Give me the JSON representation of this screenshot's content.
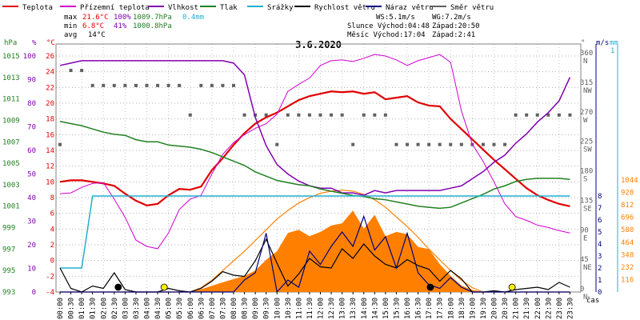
{
  "legend": {
    "items": [
      {
        "label": "Teplota",
        "color": "#e00000"
      },
      {
        "label": "Přízemní teplota",
        "color": "#d000d0"
      },
      {
        "label": "Vlhkost",
        "color": "#8000b0"
      },
      {
        "label": "Tlak",
        "color": "#208020"
      },
      {
        "label": "Srážky",
        "color": "#20b0d0"
      },
      {
        "label": "Rychlost větru",
        "color": "#000000"
      },
      {
        "label": "Náraz větru",
        "color": "#000080"
      },
      {
        "label": "Směr větru",
        "color": "#606060"
      }
    ]
  },
  "stats": {
    "max_label": "max",
    "max_temp": "21.6°C",
    "max_hum": "100%",
    "max_press": "1009.7hPa",
    "rain": "0.4mm",
    "min_label": "min",
    "min_temp": "6.8°C",
    "min_hum": "41%",
    "min_press": "1000.8hPa",
    "avg_label": "avg",
    "avg_temp": "14°C"
  },
  "wind_info": {
    "ws": "WS:5.1m/s",
    "wg": "WG:7.2m/s",
    "sun": "Slunce Východ:04:48",
    "sun_set": "Západ:20:50",
    "moon": "Měsíc Východ:17:04",
    "moon_set": "Západ:2:41"
  },
  "chart_data": {
    "type": "line",
    "title": "3.6.2020",
    "x": [
      "00:00",
      "00:30",
      "01:00",
      "01:30",
      "02:00",
      "02:30",
      "03:00",
      "03:30",
      "04:00",
      "04:30",
      "05:00",
      "05:30",
      "06:00",
      "06:30",
      "07:00",
      "07:30",
      "08:00",
      "08:30",
      "09:00",
      "09:30",
      "10:00",
      "10:30",
      "11:00",
      "11:30",
      "12:00",
      "12:30",
      "13:00",
      "13:30",
      "14:00",
      "14:30",
      "15:00",
      "15:30",
      "16:00",
      "16:30",
      "17:00",
      "17:30",
      "18:00",
      "18:30",
      "19:00",
      "19:30",
      "20:00",
      "20:30",
      "21:00",
      "21:30",
      "22:00",
      "22:30",
      "23:00",
      "23:30"
    ],
    "xlabel": "čas",
    "axes": {
      "hpa": {
        "label": "hPa",
        "ticks": [
          993,
          995,
          997,
          999,
          1001,
          1003,
          1005,
          1007,
          1009,
          1011,
          1013,
          1015
        ]
      },
      "pct": {
        "label": "%",
        "ticks": [
          0,
          10,
          20,
          30,
          40,
          50,
          60,
          70,
          80,
          90,
          100
        ]
      },
      "temp": {
        "label": "°C",
        "ticks": [
          -4,
          -2,
          0,
          2,
          4,
          6,
          8,
          10,
          12,
          14,
          16,
          18,
          20,
          22,
          24,
          26
        ]
      },
      "deg": {
        "label": "°",
        "ticks": [
          {
            "v": 0,
            "t": "0"
          },
          {
            "v": 45,
            "t": "45"
          },
          {
            "v": 90,
            "t": "90"
          },
          {
            "v": 135,
            "t": "135"
          },
          {
            "v": 180,
            "t": "180"
          },
          {
            "v": 225,
            "t": "225"
          },
          {
            "v": 270,
            "t": "270"
          },
          {
            "v": 315,
            "t": "315"
          },
          {
            "v": 360,
            "t": "360"
          }
        ],
        "dirs": [
          {
            "v": 0,
            "t": "N"
          },
          {
            "v": 45,
            "t": "NE"
          },
          {
            "v": 90,
            "t": "E"
          },
          {
            "v": 135,
            "t": "SE"
          },
          {
            "v": 180,
            "t": "S"
          },
          {
            "v": 225,
            "t": "SW"
          },
          {
            "v": 270,
            "t": "W"
          },
          {
            "v": 315,
            "t": "NW"
          },
          {
            "v": 360,
            "t": "N"
          }
        ]
      },
      "ms": {
        "label": "m/s",
        "ticks": [
          0,
          1,
          2,
          3,
          4,
          5,
          6,
          7,
          8
        ]
      },
      "mm": {
        "label": "mm",
        "top_label": "1"
      },
      "wm2": {
        "ticks": [
          116,
          232,
          348,
          464,
          580,
          696,
          812,
          928,
          1044
        ]
      }
    },
    "series": [
      {
        "name": "Teplota",
        "axis": "temp",
        "color": "#e00000",
        "values": [
          10,
          10.2,
          10.2,
          10,
          9.8,
          9.5,
          8.5,
          7.6,
          7,
          7.2,
          8.3,
          9.1,
          9,
          9.4,
          11.5,
          13,
          14.7,
          16.2,
          17.4,
          18.2,
          18.8,
          19.6,
          20.4,
          20.9,
          21.2,
          21.5,
          21.4,
          21.5,
          21.2,
          21.4,
          20.5,
          20.7,
          20.9,
          20.1,
          19.7,
          19.6,
          18,
          16.7,
          15.4,
          14.1,
          12.8,
          11.6,
          10.4,
          9.2,
          8.3,
          7.7,
          7.2,
          6.9
        ]
      },
      {
        "name": "Přízemní teplota",
        "axis": "temp",
        "color": "#d000d0",
        "values": [
          8.5,
          8.6,
          9.3,
          9.8,
          9.9,
          7.8,
          5.5,
          2.6,
          1.8,
          1.5,
          3.5,
          6.5,
          7.8,
          8.3,
          11,
          13.5,
          15,
          16,
          16.8,
          17.4,
          18.6,
          21.5,
          22.4,
          23.2,
          24.8,
          25.4,
          25.5,
          25.3,
          25.7,
          26.2,
          26,
          25.5,
          24.8,
          25.4,
          25.8,
          26.2,
          25.2,
          19,
          14.8,
          12.6,
          10,
          7.2,
          5.6,
          5.1,
          4.5,
          4.2,
          3.8,
          3.5
        ]
      },
      {
        "name": "Vlhkost",
        "axis": "pct",
        "color": "#8000b0",
        "values": [
          96,
          97,
          98,
          98,
          98,
          98,
          98,
          98,
          98,
          98,
          98,
          98,
          98,
          98,
          98,
          98,
          97,
          92,
          74,
          62,
          54,
          50,
          47,
          45,
          44,
          44,
          42,
          42,
          41,
          43,
          42,
          43,
          43,
          43,
          43,
          43,
          44,
          45,
          48,
          51,
          55,
          58,
          63,
          67,
          72,
          76,
          81,
          91
        ]
      },
      {
        "name": "Tlak",
        "axis": "hpa",
        "color": "#208020",
        "values": [
          1008.9,
          1008.7,
          1008.5,
          1008.2,
          1007.9,
          1007.7,
          1007.6,
          1007.2,
          1007,
          1007,
          1006.7,
          1006.6,
          1006.5,
          1006.3,
          1006,
          1005.6,
          1005.2,
          1004.8,
          1004.2,
          1003.8,
          1003.4,
          1003.2,
          1003,
          1002.9,
          1002.6,
          1002.4,
          1002.2,
          1002,
          1001.9,
          1001.7,
          1001.6,
          1001.4,
          1001.2,
          1001,
          1000.9,
          1000.8,
          1000.9,
          1001.3,
          1001.7,
          1002.1,
          1002.6,
          1002.9,
          1003.3,
          1003.5,
          1003.6,
          1003.6,
          1003.6,
          1003.5
        ]
      },
      {
        "name": "Srážky",
        "axis": "mm",
        "color": "#20b0d0",
        "values": [
          0.1,
          0.1,
          0.1,
          0.4,
          0.4,
          0.4,
          0.4,
          0.4,
          0.4,
          0.4,
          0.4,
          0.4,
          0.4,
          0.4,
          0.4,
          0.4,
          0.4,
          0.4,
          0.4,
          0.4,
          0.4,
          0.4,
          0.4,
          0.4,
          0.4,
          0.4,
          0.4,
          0.4,
          0.4,
          0.4,
          0.4,
          0.4,
          0.4,
          0.4,
          0.4,
          0.4,
          0.4,
          0.4,
          0.4,
          0.4,
          0.4,
          0.4,
          0.4,
          0.4,
          0.4,
          0.4,
          0.4,
          0.4
        ]
      },
      {
        "name": "Rychlost větru",
        "axis": "ms",
        "color": "#000000",
        "values": [
          2,
          0.3,
          0,
          0.5,
          0.3,
          1.6,
          0.2,
          0,
          0,
          0,
          0.3,
          0.1,
          0,
          0.3,
          0.9,
          1.7,
          1.4,
          1.3,
          2.6,
          4.4,
          2.4,
          0.5,
          1.5,
          2.8,
          2.1,
          2,
          3.6,
          2.8,
          4,
          3,
          2.3,
          2,
          2.7,
          2.2,
          1.9,
          0.9,
          1.8,
          1.1,
          0,
          0,
          0.1,
          0,
          0.2,
          0.3,
          0.4,
          0.2,
          0.8,
          0.4
        ]
      },
      {
        "name": "Náraz větru",
        "axis": "ms",
        "color": "#000080",
        "values": [
          0,
          0,
          0,
          0,
          0,
          0,
          0,
          0,
          0,
          0,
          0,
          0,
          0,
          0,
          0,
          0,
          0,
          1,
          1.6,
          4.9,
          0,
          1,
          0.4,
          3.4,
          2.3,
          3.8,
          5,
          3.8,
          6.3,
          3.5,
          4.6,
          2,
          4.9,
          1.6,
          0.6,
          0.3,
          1.2,
          0.4,
          0,
          0,
          0,
          0,
          0,
          0,
          0,
          0,
          0,
          0
        ]
      },
      {
        "name": "Směr větru",
        "axis": "deg",
        "color": "#606060",
        "values": [
          225,
          338,
          338,
          315,
          315,
          315,
          315,
          315,
          315,
          315,
          315,
          315,
          270,
          315,
          315,
          315,
          315,
          270,
          270,
          270,
          225,
          270,
          270,
          270,
          270,
          270,
          270,
          225,
          270,
          270,
          270,
          225,
          225,
          225,
          225,
          225,
          225,
          225,
          225,
          225,
          225,
          225,
          270,
          270,
          270,
          270,
          270,
          270
        ]
      }
    ],
    "solar": {
      "axis": "wm2",
      "color": "#ff8000",
      "values": [
        0,
        0,
        0,
        0,
        0,
        0,
        0,
        0,
        0,
        0,
        0,
        0,
        0,
        25,
        58,
        90,
        120,
        150,
        200,
        300,
        380,
        550,
        580,
        520,
        560,
        620,
        640,
        760,
        590,
        720,
        520,
        560,
        540,
        420,
        400,
        260,
        150,
        60,
        20,
        0,
        0,
        0,
        0,
        0,
        0,
        0,
        0,
        0
      ]
    },
    "solar_max": {
      "axis": "wm2",
      "color": "#ff8000",
      "values": [
        0,
        0,
        0,
        0,
        0,
        0,
        0,
        0,
        0,
        0,
        0,
        0,
        0,
        40,
        110,
        200,
        290,
        380,
        480,
        580,
        680,
        760,
        830,
        880,
        920,
        940,
        950,
        940,
        910,
        860,
        790,
        700,
        610,
        510,
        400,
        300,
        200,
        110,
        40,
        0,
        0,
        0,
        0,
        0,
        0,
        0,
        0,
        0
      ]
    },
    "markers": [
      {
        "name": "moonset",
        "time": "02:41",
        "color": "#000000"
      },
      {
        "name": "sunrise",
        "time": "04:48",
        "color": "#ffee00"
      },
      {
        "name": "moonrise",
        "time": "17:04",
        "color": "#000000"
      },
      {
        "name": "sunset",
        "time": "20:50",
        "color": "#ffee00"
      }
    ]
  }
}
